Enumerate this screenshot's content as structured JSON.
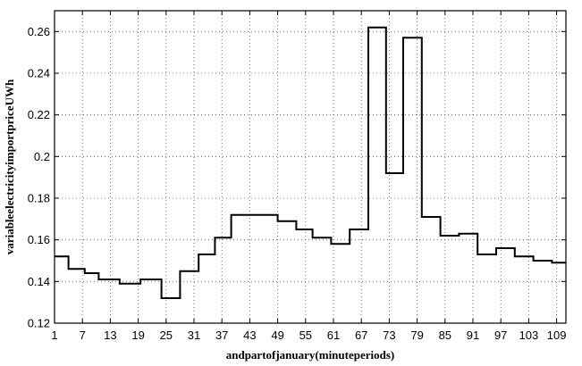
{
  "chart_data": {
    "type": "line",
    "xlabel": "andpartofjanuary(minuteperiods)",
    "ylabel": "variableelectricityimportpriceUWh",
    "xlim": [
      1,
      111
    ],
    "ylim": [
      0.12,
      0.27
    ],
    "grid": true,
    "xticks": [
      1,
      7,
      13,
      19,
      25,
      31,
      37,
      43,
      49,
      55,
      61,
      67,
      73,
      79,
      85,
      91,
      97,
      103,
      109
    ],
    "yticks": [
      0.12,
      0.14,
      0.16,
      0.18,
      0.2,
      0.22,
      0.24,
      0.26
    ],
    "ytick_labels": [
      "0.12",
      "0.14",
      "0.16",
      "0.18",
      "0.2",
      "0.22",
      "0.24",
      "0.26"
    ],
    "series": [
      {
        "style": "step",
        "points": [
          [
            1,
            0.152
          ],
          [
            4,
            0.152
          ],
          [
            4,
            0.146
          ],
          [
            7.5,
            0.146
          ],
          [
            7.5,
            0.144
          ],
          [
            10.5,
            0.144
          ],
          [
            10.5,
            0.141
          ],
          [
            15,
            0.141
          ],
          [
            15,
            0.139
          ],
          [
            19.5,
            0.139
          ],
          [
            19.5,
            0.141
          ],
          [
            24,
            0.141
          ],
          [
            24,
            0.132
          ],
          [
            28,
            0.132
          ],
          [
            28,
            0.145
          ],
          [
            32,
            0.145
          ],
          [
            32,
            0.153
          ],
          [
            35.5,
            0.153
          ],
          [
            35.5,
            0.161
          ],
          [
            39,
            0.161
          ],
          [
            39,
            0.172
          ],
          [
            43,
            0.172
          ],
          [
            43,
            0.172
          ],
          [
            49,
            0.172
          ],
          [
            49,
            0.169
          ],
          [
            53,
            0.169
          ],
          [
            53,
            0.165
          ],
          [
            56.5,
            0.165
          ],
          [
            56.5,
            0.161
          ],
          [
            60.5,
            0.161
          ],
          [
            60.5,
            0.158
          ],
          [
            64.5,
            0.158
          ],
          [
            64.5,
            0.165
          ],
          [
            68.5,
            0.165
          ],
          [
            68.5,
            0.262
          ],
          [
            72.3,
            0.262
          ],
          [
            72.3,
            0.192
          ],
          [
            76,
            0.192
          ],
          [
            76,
            0.257
          ],
          [
            80,
            0.257
          ],
          [
            80,
            0.171
          ],
          [
            84,
            0.171
          ],
          [
            84,
            0.162
          ],
          [
            88,
            0.162
          ],
          [
            88,
            0.163
          ],
          [
            92,
            0.163
          ],
          [
            92,
            0.153
          ],
          [
            96,
            0.153
          ],
          [
            96,
            0.156
          ],
          [
            100,
            0.156
          ],
          [
            100,
            0.152
          ],
          [
            104,
            0.152
          ],
          [
            104,
            0.15
          ],
          [
            108,
            0.15
          ],
          [
            108,
            0.149
          ],
          [
            111,
            0.149
          ]
        ]
      }
    ]
  }
}
